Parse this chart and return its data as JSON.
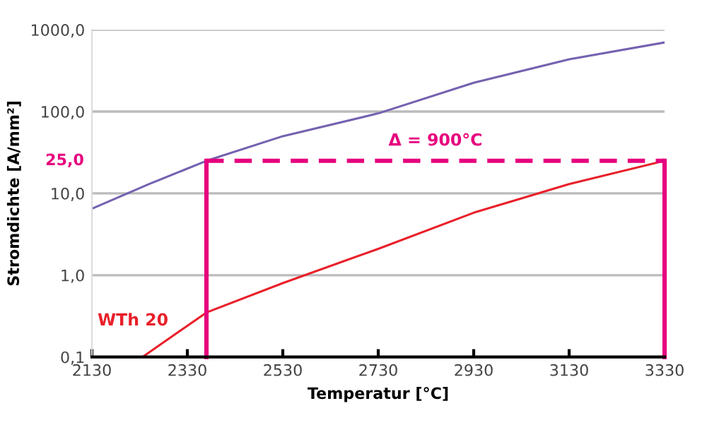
{
  "chart_data": {
    "type": "line",
    "xlabel": "Temperatur [°C]",
    "ylabel": "Stromdichte [A/mm²]",
    "series": [
      {
        "color": "#7462b0",
        "x": [
          2130,
          2250,
          2370,
          2530,
          2730,
          2930,
          3130,
          3330
        ],
        "values": [
          6.5,
          13,
          25,
          50,
          95,
          225,
          435,
          700
        ]
      },
      {
        "name": "WTh 20",
        "color": "#e8202a",
        "x": [
          2236,
          2370,
          2530,
          2730,
          2930,
          3130,
          3330
        ],
        "values": [
          0.1,
          0.35,
          0.8,
          2.1,
          5.8,
          13,
          25
        ]
      }
    ],
    "log": true,
    "xlim": [
      2130,
      3330
    ],
    "ylim": [
      0.1,
      1000
    ],
    "xticks": [
      2130,
      2330,
      2530,
      2730,
      2930,
      3130,
      3330
    ],
    "yticks": [
      {
        "value": 0.1,
        "label": "0,1"
      },
      {
        "value": 1,
        "label": "1,0"
      },
      {
        "value": 10,
        "label": "10,0"
      },
      {
        "value": 100,
        "label": "100,0"
      },
      {
        "value": 1000,
        "label": "1000,0"
      }
    ],
    "grid": "y",
    "legend": false,
    "marker": "none",
    "line_style": "solid",
    "ref_lines": [
      {
        "axis": "x",
        "value": 2370,
        "color": "#e6007e",
        "line_style": "solid"
      },
      {
        "axis": "x",
        "value": 3330,
        "color": "#e6007e",
        "line_style": "solid"
      },
      {
        "axis": "y",
        "value": 25,
        "label": "25,0",
        "color": "#e6007e",
        "line_style": "dashed"
      }
    ],
    "annotations": [
      {
        "text": "Δ = 900°C",
        "x": 2850,
        "y": 25
      }
    ]
  }
}
